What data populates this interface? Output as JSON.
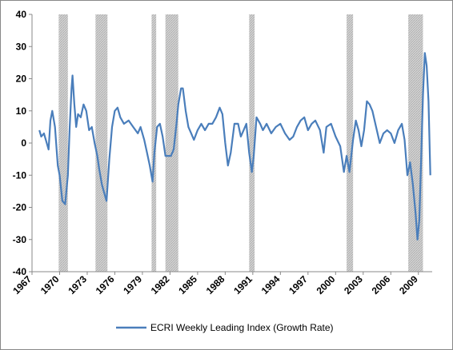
{
  "chart_data": {
    "type": "line",
    "xlim": [
      1967,
      2010.5
    ],
    "xticks": [
      1967,
      1970,
      1973,
      1976,
      1979,
      1982,
      1985,
      1988,
      1991,
      1994,
      1997,
      2000,
      2003,
      2006,
      2009
    ],
    "ylim": [
      -40,
      40
    ],
    "yticks": [
      -40,
      -30,
      -20,
      -10,
      0,
      10,
      20,
      30,
      40
    ],
    "recessions": [
      [
        1969.9,
        1970.9
      ],
      [
        1973.9,
        1975.2
      ],
      [
        1980.0,
        1980.5
      ],
      [
        1981.5,
        1982.9
      ],
      [
        1990.6,
        1991.2
      ],
      [
        2001.2,
        2001.9
      ],
      [
        2007.9,
        2009.5
      ]
    ],
    "recession_color": "#d4d4d4",
    "x": [
      1967.8,
      1968,
      1968.3,
      1968.6,
      1968.8,
      1969,
      1969.2,
      1969.5,
      1969.8,
      1970,
      1970.3,
      1970.6,
      1970.9,
      1971.1,
      1971.3,
      1971.4,
      1971.6,
      1971.8,
      1972,
      1972.3,
      1972.6,
      1972.9,
      1973.2,
      1973.5,
      1973.8,
      1974.1,
      1974.3,
      1974.6,
      1974.9,
      1975.1,
      1975.4,
      1975.7,
      1976,
      1976.3,
      1976.6,
      1977,
      1977.5,
      1978,
      1978.5,
      1978.8,
      1979.2,
      1979.5,
      1979.8,
      1980.1,
      1980.3,
      1980.6,
      1980.9,
      1981.2,
      1981.5,
      1981.8,
      1982.1,
      1982.4,
      1982.7,
      1982.9,
      1983.2,
      1983.4,
      1983.7,
      1984,
      1984.3,
      1984.6,
      1985,
      1985.4,
      1985.8,
      1986.2,
      1986.6,
      1987,
      1987.4,
      1987.7,
      1988,
      1988.3,
      1988.6,
      1989,
      1989.4,
      1989.7,
      1990,
      1990.3,
      1990.6,
      1990.9,
      1991.1,
      1991.4,
      1991.8,
      1992.1,
      1992.5,
      1993,
      1993.5,
      1994,
      1994.5,
      1995,
      1995.4,
      1995.8,
      1996.2,
      1996.6,
      1997,
      1997.4,
      1997.8,
      1998.3,
      1998.7,
      1999,
      1999.5,
      2000,
      2000.5,
      2000.9,
      2001.2,
      2001.5,
      2001.9,
      2002.2,
      2002.5,
      2002.8,
      2003.1,
      2003.4,
      2003.7,
      2004,
      2004.4,
      2004.8,
      2005.2,
      2005.6,
      2006,
      2006.4,
      2006.8,
      2007.2,
      2007.5,
      2007.8,
      2008.1,
      2008.4,
      2008.7,
      2008.9,
      2009.1,
      2009.3,
      2009.5,
      2009.7,
      2009.9,
      2010.1,
      2010.3
    ],
    "series": [
      {
        "name": "ECRI Weekly Leading Index (Growth Rate)",
        "color": "#4a7ebb",
        "values": [
          4,
          2,
          3,
          0,
          -2,
          7,
          10,
          5,
          -7,
          -10,
          -18,
          -19,
          -10,
          5,
          17,
          21,
          12,
          5,
          9,
          8,
          12,
          10,
          4,
          5,
          0,
          -4,
          -8,
          -13,
          -16,
          -18,
          -5,
          5,
          10,
          11,
          8,
          6,
          7,
          5,
          3,
          5,
          1,
          -3,
          -7,
          -12,
          -3,
          5,
          6,
          2,
          -4,
          -4,
          -4,
          -2,
          6,
          12,
          17,
          17,
          10,
          5,
          3,
          1,
          4,
          6,
          4,
          6,
          6,
          8,
          11,
          9,
          0,
          -7,
          -3,
          6,
          6,
          2,
          4,
          6,
          -3,
          -9,
          -4,
          8,
          6,
          4,
          6,
          3,
          5,
          6,
          3,
          1,
          2,
          5,
          7,
          8,
          4,
          6,
          7,
          4,
          -3,
          5,
          6,
          2,
          -1,
          -9,
          -4,
          -9,
          1,
          7,
          4,
          -1,
          4,
          13,
          12,
          10,
          5,
          0,
          3,
          4,
          3,
          0,
          4,
          6,
          1,
          -10,
          -6,
          -13,
          -22,
          -30,
          -24,
          -5,
          15,
          28,
          24,
          13,
          -10
        ]
      }
    ]
  }
}
